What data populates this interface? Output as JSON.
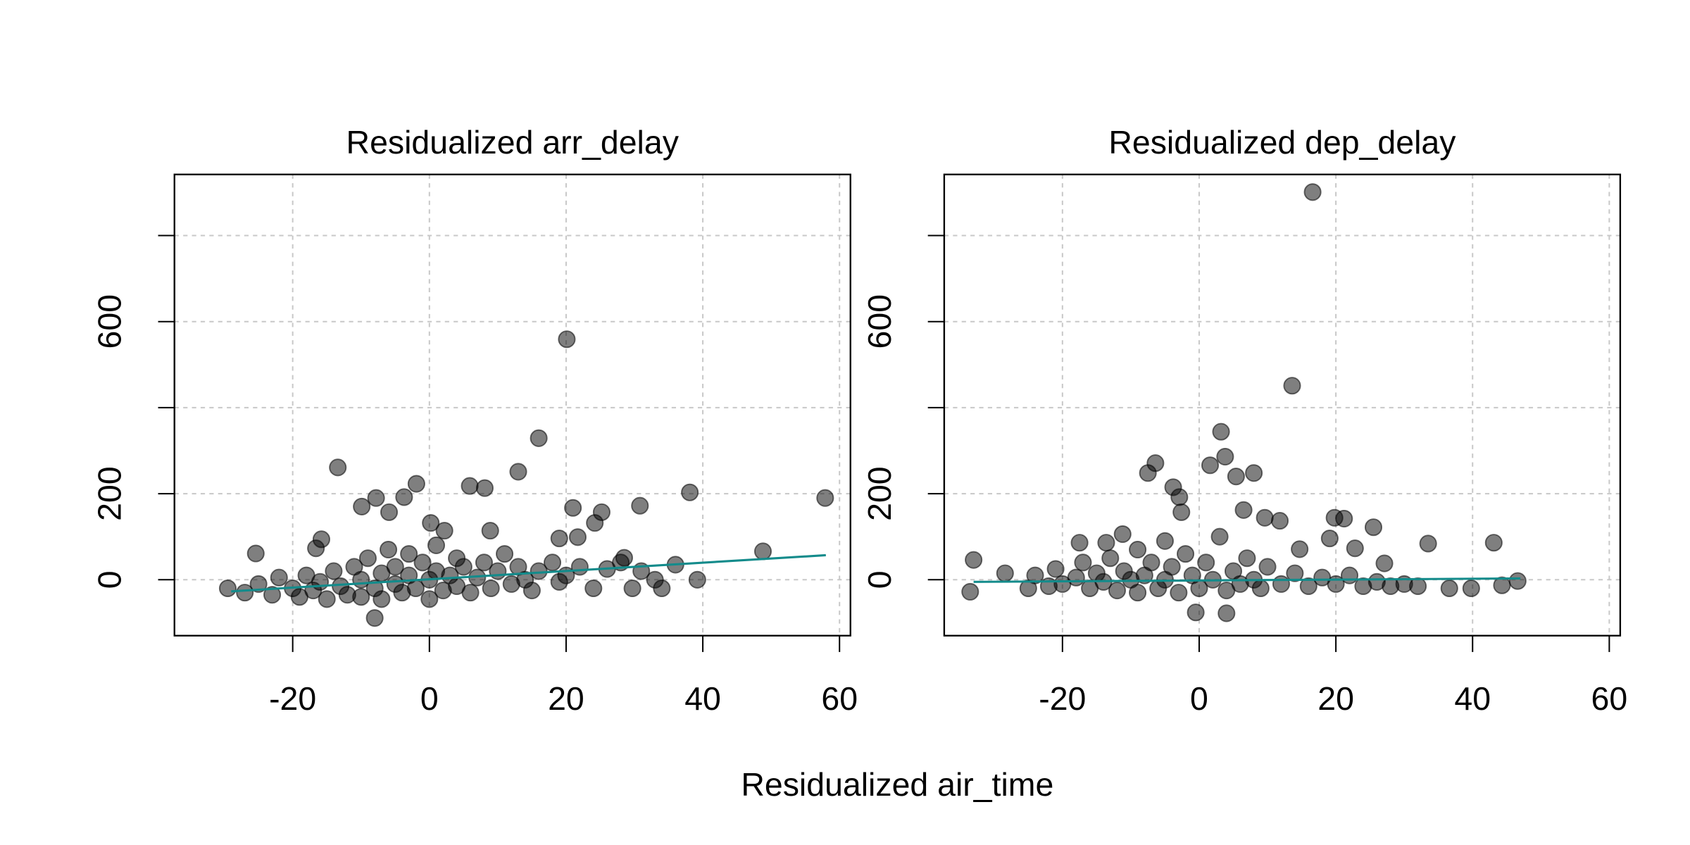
{
  "xlabel": "Residualized air_time",
  "chart_data": [
    {
      "type": "scatter",
      "title": "Residualized arr_delay",
      "xlim": [
        -37.3,
        61.6
      ],
      "ylim": [
        -130,
        942
      ],
      "xticks": [
        -20,
        0,
        20,
        40,
        60
      ],
      "yticks": [
        0,
        200,
        {
          "value": 400,
          "label": null
        },
        600,
        {
          "value": 800,
          "label": null
        }
      ],
      "grid": true,
      "series": [
        {
          "color": "#000000",
          "x": [
            20.1,
            16,
            -13.4,
            13,
            -1.9,
            5.9,
            8.1,
            -7.8,
            57.9,
            38.1,
            30.8,
            21,
            -9.9,
            -5.9,
            -3.7,
            25.2,
            24.2,
            48.8,
            -25.4,
            -8,
            -29.5,
            39.2,
            34,
            29.7,
            36,
            8.9,
            19,
            21.7,
            0.2,
            2.2,
            -15.8,
            -16.6,
            28.5,
            -27,
            -25,
            -23,
            -22,
            -20,
            -19,
            -18,
            -17,
            -16,
            -15,
            -14,
            -13,
            -12,
            -11,
            -10,
            -10,
            -9,
            -8,
            -7,
            -7,
            -6,
            -5,
            -5,
            -4,
            -3,
            -3,
            -2,
            -1,
            0,
            0,
            1,
            1,
            2,
            3,
            4,
            4,
            5,
            6,
            7,
            8,
            9,
            10,
            11,
            12,
            13,
            14,
            15,
            16,
            18,
            19,
            20,
            22,
            24,
            26,
            28,
            31,
            33
          ],
          "values": [
            559,
            329,
            261,
            251,
            223,
            218,
            213,
            190,
            190,
            203,
            172,
            167,
            170,
            157,
            192,
            157,
            132,
            66,
            61,
            -89,
            -20,
            0,
            -20,
            -20,
            35,
            114,
            96,
            99,
            132,
            114,
            94,
            73,
            51,
            -30,
            -10,
            -35,
            5,
            -20,
            -40,
            10,
            -25,
            -5,
            -45,
            20,
            -15,
            -35,
            30,
            0,
            -40,
            50,
            -20,
            15,
            -45,
            70,
            -10,
            30,
            -30,
            10,
            60,
            -20,
            40,
            0,
            -45,
            20,
            80,
            -25,
            10,
            50,
            -15,
            30,
            -30,
            5,
            40,
            -20,
            20,
            60,
            -10,
            30,
            0,
            -25,
            20,
            40,
            -5,
            10,
            30,
            -20,
            25,
            40,
            20,
            0
          ]
        }
      ],
      "fit": {
        "color": "#138b8b",
        "x": [
          -29,
          58
        ],
        "values": [
          -27,
          57
        ]
      }
    },
    {
      "type": "scatter",
      "title": "Residualized dep_delay",
      "xlim": [
        -37.3,
        61.6
      ],
      "ylim": [
        -130,
        942
      ],
      "xticks": [
        -20,
        0,
        20,
        40,
        60
      ],
      "yticks": [
        0,
        200,
        {
          "value": 400,
          "label": null
        },
        600,
        {
          "value": 800,
          "label": null
        }
      ],
      "grid": true,
      "series": [
        {
          "color": "#000000",
          "x": [
            16.6,
            13.6,
            3.2,
            3.8,
            -6.4,
            -7.5,
            1.6,
            5.4,
            8,
            -3.8,
            -2.9,
            -2.6,
            6.5,
            11.8,
            19.8,
            21.2,
            25.5,
            22.8,
            33.5,
            43.1,
            19.1,
            14.7,
            -33.5,
            -33,
            -28.4,
            -0.5,
            4,
            27.1,
            46.6,
            44.3,
            39.8,
            36.6,
            9.6,
            -13.6,
            -11.2,
            -17.5,
            -25,
            -24,
            -22,
            -21,
            -20,
            -18,
            -17,
            -16,
            -15,
            -14,
            -13,
            -12,
            -11,
            -10,
            -9,
            -9,
            -8,
            -7,
            -6,
            -5,
            -5,
            -4,
            -3,
            -2,
            -1,
            0,
            1,
            2,
            3,
            4,
            5,
            6,
            7,
            8,
            9,
            10,
            12,
            14,
            16,
            18,
            20,
            22,
            24,
            26,
            28,
            30,
            32
          ],
          "values": [
            901,
            451,
            344,
            286,
            271,
            248,
            266,
            240,
            248,
            215,
            192,
            157,
            162,
            137,
            144,
            142,
            122,
            73,
            84,
            86,
            96,
            71,
            -28,
            46,
            15,
            -76,
            -78,
            38,
            -3,
            -13,
            -20,
            -20,
            144,
            86,
            106,
            86,
            -20,
            10,
            -15,
            25,
            -10,
            5,
            40,
            -20,
            15,
            -5,
            50,
            -25,
            20,
            0,
            70,
            -30,
            10,
            40,
            -20,
            90,
            0,
            30,
            -30,
            60,
            10,
            -20,
            40,
            0,
            100,
            -25,
            20,
            -10,
            50,
            0,
            -20,
            30,
            -10,
            15,
            -15,
            5,
            -10,
            10,
            -15,
            -5,
            -15,
            -10,
            -15
          ]
        }
      ],
      "fit": {
        "color": "#138b8b",
        "x": [
          -33,
          47
        ],
        "values": [
          -5,
          3
        ]
      }
    }
  ]
}
